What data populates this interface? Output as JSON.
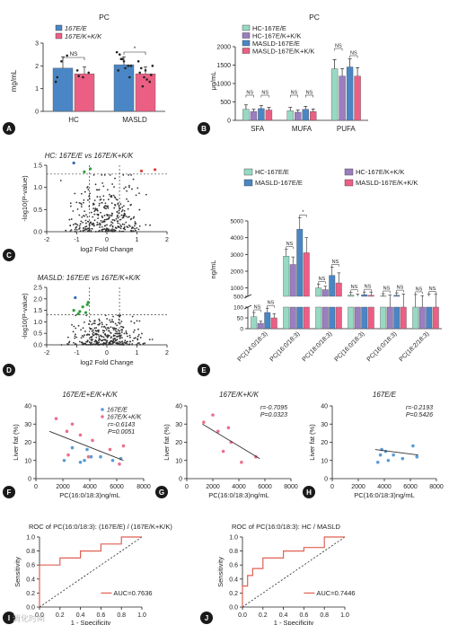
{
  "panel_letters": [
    "A",
    "B",
    "C",
    "D",
    "E",
    "F",
    "G",
    "H",
    "I",
    "J"
  ],
  "colors": {
    "teal": "#98d9c3",
    "purple": "#9b7ec0",
    "blue": "#4a86c5",
    "pink": "#ec5f84",
    "axis": "#222222",
    "scatter_pink": "#ec6f8c",
    "scatter_blue": "#5a9bd5",
    "volcano_green": "#2e9e3e",
    "volcano_blue": "#2d6fb3",
    "volcano_red": "#e23b3b",
    "roc_red": "#e06055",
    "dark": "#333333"
  },
  "watermark": "消化时间",
  "chart_data": [
    {
      "id": "A",
      "type": "bar",
      "title": "PC",
      "ylabel": "mg/mL",
      "categories": [
        "HC",
        "MASLD"
      ],
      "ylim": [
        0,
        3
      ],
      "yticks": [
        0,
        1,
        2,
        3
      ],
      "series": [
        {
          "name": "167E/E",
          "values": [
            1.9,
            2.05
          ],
          "err": [
            0.5,
            0.35
          ]
        },
        {
          "name": "167E/K+K/K",
          "values": [
            1.65,
            1.65
          ],
          "err": [
            0.3,
            0.3
          ]
        }
      ],
      "points": [
        [
          1.3,
          2.2,
          2.45,
          1.5
        ],
        [
          1.8,
          1.5,
          1.7,
          1.55
        ],
        [
          2.6,
          2.3,
          2.0,
          1.8,
          2.2,
          1.5,
          2.5,
          1.9,
          2.0,
          2.3
        ],
        [
          2.2,
          1.5,
          1.3,
          1.7,
          1.8,
          1.6,
          1.9,
          1.4,
          2.0,
          1.1
        ]
      ],
      "annotations": [
        "NS",
        "*"
      ]
    },
    {
      "id": "B",
      "type": "bar",
      "title": "PC",
      "ylabel": "μg/mL",
      "categories": [
        "SFA",
        "MUFA",
        "PUFA"
      ],
      "ylim": [
        0,
        2000
      ],
      "yticks": [
        0,
        500,
        1000,
        1500,
        2000
      ],
      "series": [
        {
          "name": "HC-167E/E",
          "values": [
            300,
            260,
            1400
          ],
          "err": [
            120,
            90,
            250
          ]
        },
        {
          "name": "HC-167E/K+K/K",
          "values": [
            240,
            220,
            1200
          ],
          "err": [
            60,
            60,
            200
          ]
        },
        {
          "name": "MASLD-167E/E",
          "values": [
            320,
            300,
            1450
          ],
          "err": [
            80,
            80,
            220
          ]
        },
        {
          "name": "MASLD-167E/K+K/K",
          "values": [
            280,
            240,
            1200
          ],
          "err": [
            70,
            70,
            230
          ]
        }
      ],
      "annotations": [
        "NS",
        "NS",
        "NS",
        "NS",
        "NS",
        "NS",
        "NS",
        "*"
      ]
    },
    {
      "id": "C",
      "type": "scatter",
      "title": "HC: 167E/E vs 167E/K+K/K",
      "xlabel": "log2 Fold Change",
      "ylabel": "-log10(P-value)",
      "xlim": [
        -2,
        2
      ],
      "ylim": [
        0,
        1.5
      ],
      "xticks": [
        -2,
        -1,
        0,
        1,
        2
      ],
      "yticks": [
        0.0,
        0.5,
        1.0,
        1.5
      ],
      "x_threshold": [
        -0.58,
        0.42
      ],
      "y_threshold": 1.3,
      "highlight_points": [
        {
          "x": -1.1,
          "y": 1.55,
          "group": "blue"
        },
        {
          "x": -0.75,
          "y": 1.35,
          "group": "green"
        },
        {
          "x": -0.55,
          "y": 1.42,
          "group": "green"
        },
        {
          "x": 1.15,
          "y": 1.37,
          "group": "red"
        },
        {
          "x": 1.6,
          "y": 1.4,
          "group": "red"
        }
      ]
    },
    {
      "id": "D",
      "type": "scatter",
      "title": "MASLD: 167E/E vs 167E/K+K/K",
      "xlabel": "log2 Fold Change",
      "ylabel": "-log10(P-value)",
      "xlim": [
        -2,
        2
      ],
      "ylim": [
        0,
        2.5
      ],
      "xticks": [
        -2,
        -1,
        0,
        1,
        2
      ],
      "yticks": [
        0.0,
        0.5,
        1.0,
        1.5,
        2.0,
        2.5
      ],
      "x_threshold": [
        -0.58,
        0.42
      ],
      "y_threshold": 1.3,
      "highlight_points": [
        {
          "x": -0.8,
          "y": 1.65,
          "group": "green"
        },
        {
          "x": -0.9,
          "y": 1.45,
          "group": "green"
        },
        {
          "x": -0.7,
          "y": 1.4,
          "group": "green"
        },
        {
          "x": -1.1,
          "y": 1.5,
          "group": "green"
        },
        {
          "x": -0.65,
          "y": 1.75,
          "group": "green"
        },
        {
          "x": -0.95,
          "y": 1.35,
          "group": "green"
        },
        {
          "x": -0.62,
          "y": 1.85,
          "group": "green"
        },
        {
          "x": -1.05,
          "y": 2.05,
          "group": "blue"
        }
      ]
    },
    {
      "id": "E",
      "type": "bar",
      "ylabel": "ng/mL",
      "categories": [
        "PC(14:0/18:3)",
        "PC(16:0/18:3)",
        "PC(18:0/18:3)",
        "PC(16:0/18:3)",
        "PC(16:0/18:3)",
        "PC(18:2/18:3)"
      ],
      "series": [
        {
          "name": "HC-167E/E",
          "values": [
            55,
            2900,
            1000,
            580,
            520,
            490
          ],
          "err": [
            20,
            400,
            220,
            150,
            140,
            120
          ]
        },
        {
          "name": "HC-167E/K+K/K",
          "values": [
            25,
            2400,
            900,
            500,
            450,
            420
          ],
          "err": [
            10,
            450,
            200,
            140,
            130,
            120
          ]
        },
        {
          "name": "MASLD-167E/E",
          "values": [
            75,
            4500,
            1750,
            600,
            560,
            500
          ],
          "err": [
            20,
            700,
            500,
            160,
            150,
            130
          ]
        },
        {
          "name": "MASLD-167E/K+K/K",
          "values": [
            50,
            3100,
            1300,
            560,
            480,
            460
          ],
          "err": [
            20,
            900,
            600,
            200,
            160,
            160
          ]
        }
      ],
      "lower_yticks": [
        0,
        50,
        100
      ],
      "upper_yticks": [
        500,
        1000,
        2000,
        3000,
        4000,
        5000
      ],
      "annotations": [
        "NS",
        "NS",
        "NS",
        "*",
        "NS",
        "NS",
        "NS",
        "NS",
        "NS",
        "NS",
        "NS",
        "NS"
      ]
    },
    {
      "id": "F",
      "type": "scatter",
      "title": "167E/E+E/K+K/K",
      "xlabel": "PC(16:0/18:3)ng/mL",
      "ylabel": "Liver fat (%)",
      "xlim": [
        0,
        8000
      ],
      "ylim": [
        0,
        40
      ],
      "xticks": [
        0,
        2000,
        4000,
        6000,
        8000
      ],
      "yticks": [
        0,
        10,
        20,
        30,
        40
      ],
      "series": [
        {
          "name": "167E/E",
          "points": [
            [
              2100,
              10
            ],
            [
              2700,
              17
            ],
            [
              3300,
              9
            ],
            [
              3800,
              16
            ],
            [
              4100,
              12
            ],
            [
              4800,
              12
            ],
            [
              5700,
              10
            ],
            [
              6300,
              11
            ],
            [
              3600,
              10
            ]
          ]
        },
        {
          "name": "167E/K+K/K",
          "points": [
            [
              1500,
              33
            ],
            [
              2300,
              26
            ],
            [
              2700,
              30
            ],
            [
              2400,
              13
            ],
            [
              3300,
              24
            ],
            [
              3900,
              12
            ],
            [
              4200,
              21
            ],
            [
              5500,
              16
            ],
            [
              6200,
              8
            ],
            [
              6500,
              18
            ]
          ]
        }
      ],
      "fit_line": [
        [
          1000,
          26
        ],
        [
          6500,
          10
        ]
      ],
      "stats": {
        "r": "r=-0.6143",
        "p": "P=0.0051"
      }
    },
    {
      "id": "G",
      "type": "scatter",
      "title": "167E/K+K/K",
      "xlabel": "PC(16:0/18:3)ng/mL",
      "ylabel": "Liver fat (%)",
      "xlim": [
        0,
        8000
      ],
      "ylim": [
        0,
        40
      ],
      "xticks": [
        0,
        2000,
        4000,
        6000,
        8000
      ],
      "yticks": [
        0,
        10,
        20,
        30,
        40
      ],
      "series": [
        {
          "name": "167E/K+K/K",
          "points": [
            [
              1300,
              31
            ],
            [
              2000,
              35
            ],
            [
              2400,
              26
            ],
            [
              2800,
              15
            ],
            [
              3200,
              28
            ],
            [
              3400,
              20
            ],
            [
              4200,
              9
            ],
            [
              5300,
              12
            ]
          ]
        }
      ],
      "fit_line": [
        [
          1200,
          30
        ],
        [
          5600,
          11
        ]
      ],
      "stats": {
        "r": "r=-0.7095",
        "p": "P=0.0323"
      }
    },
    {
      "id": "H",
      "type": "scatter",
      "title": "167E/E",
      "xlabel": "PC(16:0/18:3)ng/mL",
      "ylabel": "Liver fat (%)",
      "xlim": [
        0,
        8000
      ],
      "ylim": [
        0,
        40
      ],
      "xticks": [
        0,
        2000,
        4000,
        6000,
        8000
      ],
      "yticks": [
        0,
        10,
        20,
        30,
        40
      ],
      "series": [
        {
          "name": "167E/E",
          "points": [
            [
              3500,
              9
            ],
            [
              3800,
              16
            ],
            [
              4100,
              15
            ],
            [
              4300,
              10
            ],
            [
              4700,
              13
            ],
            [
              5400,
              11
            ],
            [
              6200,
              18
            ],
            [
              6500,
              12
            ],
            [
              3700,
              13
            ]
          ]
        }
      ],
      "fit_line": [
        [
          3300,
          16
        ],
        [
          6600,
          13
        ]
      ],
      "stats": {
        "r": "r=-0.2193",
        "p": "P=0.5426"
      }
    },
    {
      "id": "I",
      "type": "line",
      "title": "ROC of PC(16:0/18:3): (167E/E) / (167E/K+K/K)",
      "xlabel": "1 - Specificity",
      "ylabel": "Sensitivity",
      "xlim": [
        0,
        1
      ],
      "ylim": [
        0,
        1
      ],
      "xticks": [
        0.0,
        0.2,
        0.4,
        0.6,
        0.8,
        1.0
      ],
      "yticks": [
        0.0,
        0.2,
        0.4,
        0.6,
        0.8,
        1.0
      ],
      "x": [
        0,
        0,
        0.2,
        0.2,
        0.4,
        0.4,
        0.6,
        0.6,
        0.8,
        0.8,
        1.0
      ],
      "y": [
        0,
        0.6,
        0.6,
        0.7,
        0.7,
        0.8,
        0.8,
        0.9,
        0.9,
        1.0,
        1.0
      ],
      "auc": "AUC=0.7636"
    },
    {
      "id": "J",
      "type": "line",
      "title": "ROC of PC(16:0/18:3): HC / MASLD",
      "xlabel": "1 - Specificity",
      "ylabel": "Sensitivity",
      "xlim": [
        0,
        1
      ],
      "ylim": [
        0,
        1
      ],
      "xticks": [
        0.0,
        0.2,
        0.4,
        0.6,
        0.8,
        1.0
      ],
      "yticks": [
        0.0,
        0.2,
        0.4,
        0.6,
        0.8,
        1.0
      ],
      "x": [
        0,
        0,
        0.05,
        0.05,
        0.1,
        0.1,
        0.2,
        0.2,
        0.4,
        0.4,
        0.6,
        0.6,
        0.8,
        0.8,
        1.0
      ],
      "y": [
        0,
        0.3,
        0.3,
        0.45,
        0.45,
        0.55,
        0.55,
        0.7,
        0.7,
        0.8,
        0.8,
        0.85,
        0.85,
        1.0,
        1.0
      ],
      "auc": "AUC=0.7446"
    }
  ]
}
